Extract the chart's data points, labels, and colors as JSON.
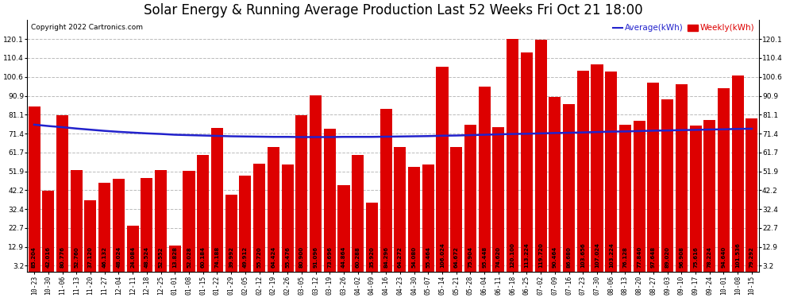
{
  "title": "Solar Energy & Running Average Production Last 52 Weeks Fri Oct 21 18:00",
  "copyright": "Copyright 2022 Cartronics.com",
  "legend_avg": "Average(kWh)",
  "legend_weekly": "Weekly(kWh)",
  "categories": [
    "10-23",
    "10-30",
    "11-06",
    "11-13",
    "11-20",
    "11-27",
    "12-04",
    "12-11",
    "12-18",
    "12-25",
    "01-01",
    "01-08",
    "01-15",
    "01-22",
    "01-29",
    "02-05",
    "02-12",
    "02-19",
    "02-26",
    "03-05",
    "03-12",
    "03-19",
    "03-26",
    "04-02",
    "04-09",
    "04-16",
    "04-23",
    "04-30",
    "05-07",
    "05-14",
    "05-21",
    "05-28",
    "06-04",
    "06-11",
    "06-18",
    "06-25",
    "07-02",
    "07-09",
    "07-16",
    "07-23",
    "07-30",
    "08-06",
    "08-13",
    "08-20",
    "08-27",
    "09-03",
    "09-10",
    "09-17",
    "09-24",
    "10-01",
    "10-08",
    "10-15"
  ],
  "weekly_values": [
    85.204,
    42.016,
    80.776,
    52.76,
    37.12,
    46.132,
    48.024,
    24.084,
    48.524,
    52.552,
    13.828,
    52.028,
    60.184,
    74.188,
    39.992,
    49.912,
    55.72,
    64.424,
    55.476,
    80.9,
    91.096,
    73.696,
    44.864,
    60.288,
    35.92,
    84.296,
    64.272,
    54.08,
    55.464,
    106.024,
    64.672,
    75.904,
    95.448,
    74.62,
    120.1,
    113.224,
    119.72,
    90.464,
    86.68,
    103.656,
    107.024,
    103.224,
    76.128,
    77.84,
    97.648,
    89.02,
    96.908,
    75.616,
    78.224,
    94.64,
    101.536,
    79.292
  ],
  "avg_values": [
    76.0,
    75.3,
    74.7,
    74.0,
    73.4,
    72.8,
    72.3,
    71.9,
    71.5,
    71.2,
    70.8,
    70.6,
    70.4,
    70.2,
    70.0,
    69.9,
    69.8,
    69.7,
    69.7,
    69.6,
    69.6,
    69.6,
    69.7,
    69.7,
    69.7,
    69.8,
    69.9,
    70.0,
    70.1,
    70.3,
    70.4,
    70.6,
    70.8,
    71.0,
    71.2,
    71.3,
    71.5,
    71.7,
    71.8,
    72.0,
    72.2,
    72.4,
    72.5,
    72.7,
    72.9,
    73.0,
    73.2,
    73.3,
    73.5,
    73.6,
    73.8,
    73.9
  ],
  "bar_color": "#dd0000",
  "avg_line_color": "#2222cc",
  "background_color": "#ffffff",
  "grid_color": "#bbbbbb",
  "ylim_max": 130,
  "yticks": [
    3.2,
    12.9,
    22.7,
    32.4,
    42.2,
    51.9,
    61.7,
    71.4,
    81.1,
    90.9,
    100.6,
    110.4,
    120.1
  ],
  "title_fontsize": 12,
  "copyright_fontsize": 6.5,
  "xtick_fontsize": 5.8,
  "ytick_fontsize": 6.5,
  "value_fontsize": 5.0,
  "legend_fontsize": 7.5
}
